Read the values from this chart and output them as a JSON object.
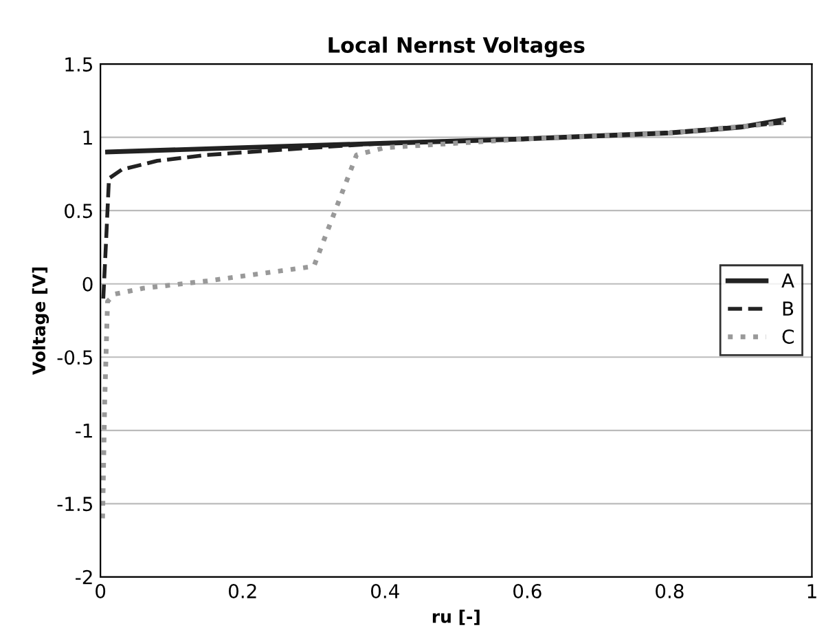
{
  "chart_data": {
    "type": "line",
    "title": "Local Nernst Voltages",
    "xlabel": "ru [-]",
    "ylabel": "Voltage [V]",
    "xlim": [
      0,
      1
    ],
    "ylim": [
      -2,
      1.5
    ],
    "xticks": [
      0,
      0.2,
      0.4,
      0.6,
      0.8,
      1
    ],
    "yticks": [
      -2,
      -1.5,
      -1,
      -0.5,
      0,
      0.5,
      1,
      1.5
    ],
    "grid": "y",
    "legend": "right",
    "marker": "none",
    "series": [
      {
        "name": "A",
        "color": "#222222",
        "line_style": "solid",
        "x": [
          0.01,
          0.2,
          0.4,
          0.6,
          0.8,
          0.9,
          0.96
        ],
        "values": [
          0.9,
          0.93,
          0.96,
          0.99,
          1.03,
          1.07,
          1.12
        ]
      },
      {
        "name": "B",
        "color": "#222222",
        "line_style": "dashed",
        "x": [
          0.004,
          0.008,
          0.012,
          0.03,
          0.08,
          0.15,
          0.3,
          0.4,
          0.6,
          0.8,
          0.96
        ],
        "values": [
          -0.1,
          0.3,
          0.72,
          0.78,
          0.84,
          0.88,
          0.93,
          0.96,
          0.99,
          1.03,
          1.1
        ]
      },
      {
        "name": "C",
        "color": "#999999",
        "line_style": "dotted",
        "x": [
          0.003,
          0.006,
          0.01,
          0.02,
          0.06,
          0.15,
          0.3,
          0.36,
          0.4,
          0.6,
          0.8,
          0.96
        ],
        "values": [
          -1.6,
          -0.8,
          -0.12,
          -0.07,
          -0.03,
          0.02,
          0.12,
          0.88,
          0.93,
          0.99,
          1.03,
          1.1
        ]
      }
    ]
  }
}
